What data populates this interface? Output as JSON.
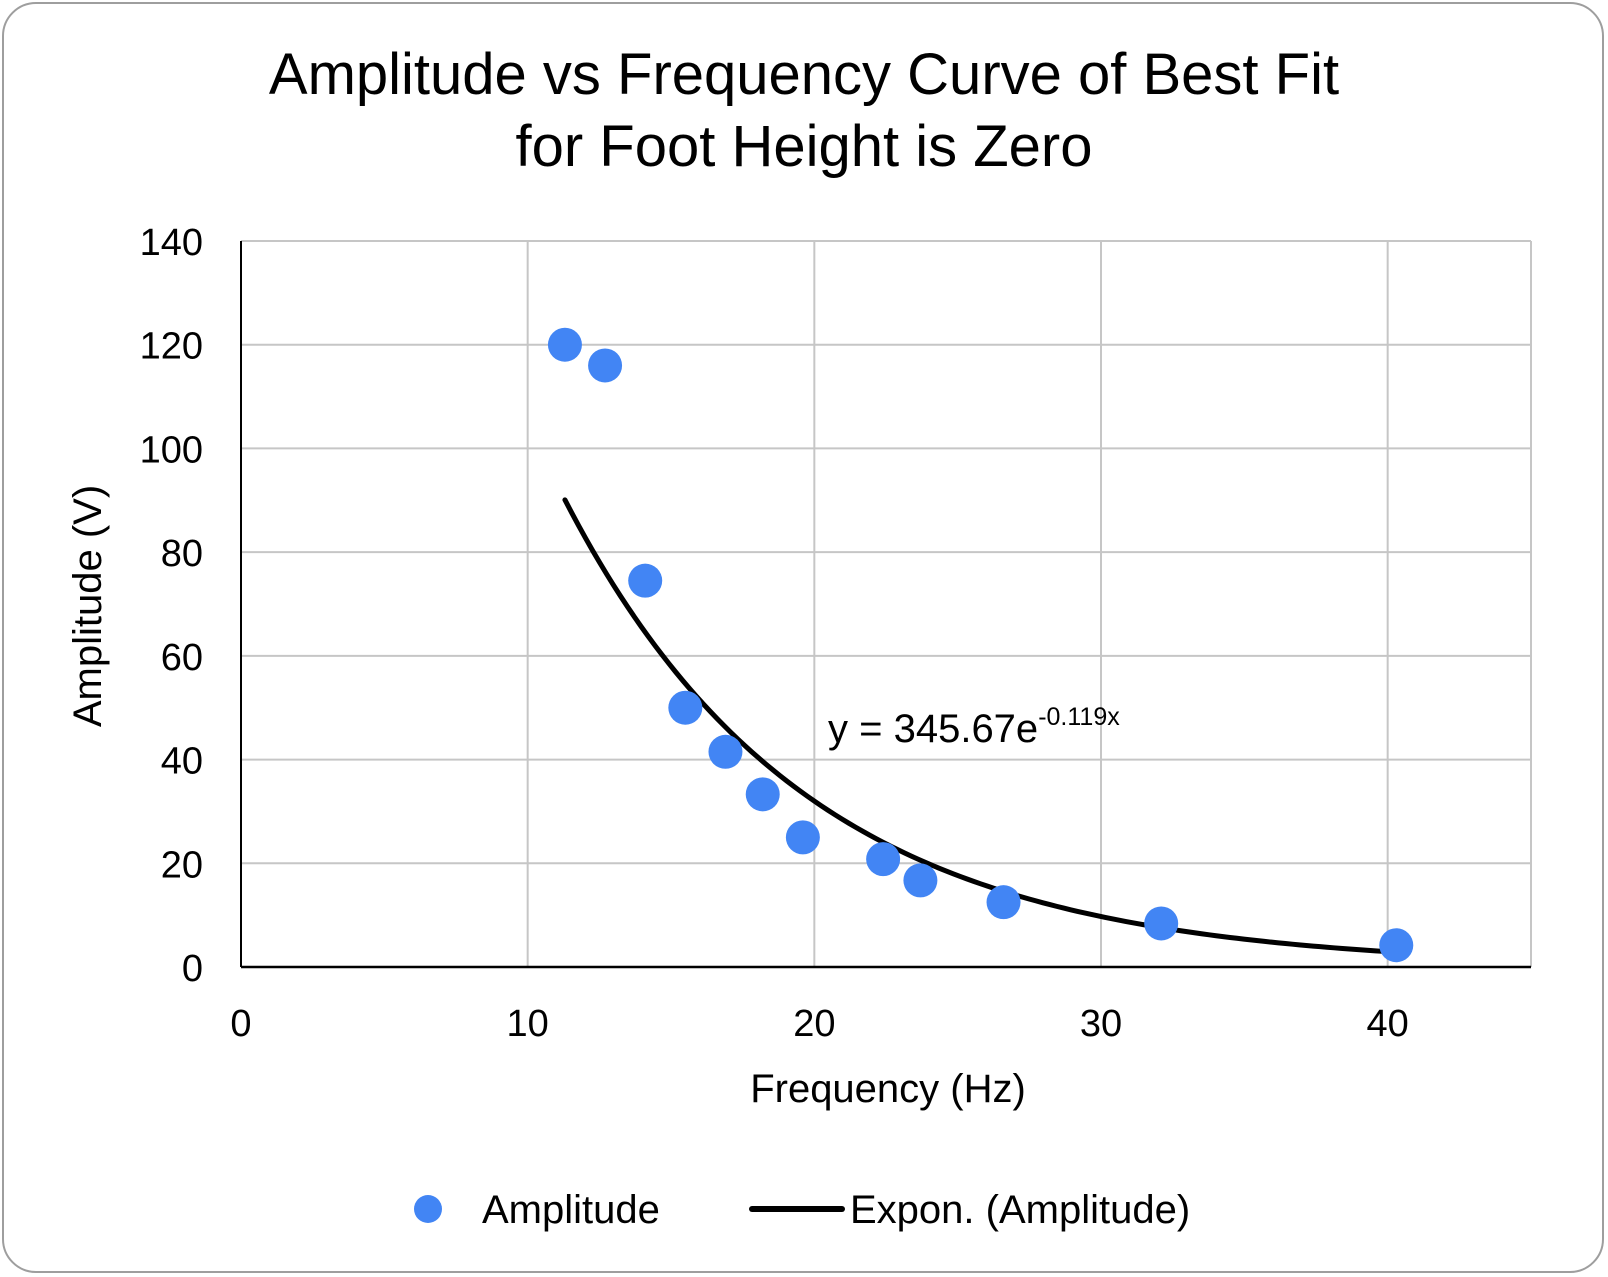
{
  "chart_data": {
    "type": "scatter",
    "title_lines": [
      "Amplitude vs Frequency Curve of Best Fit",
      "for Foot Height is Zero"
    ],
    "xlabel": "Frequency (Hz)",
    "ylabel": "Amplitude (V)",
    "xlim": [
      0,
      45
    ],
    "ylim": [
      0,
      140
    ],
    "xticks": [
      0,
      10,
      20,
      30,
      40
    ],
    "xtick_labels": [
      "0",
      "10",
      "20",
      "30",
      "40"
    ],
    "yticks": [
      0,
      20,
      40,
      60,
      80,
      100,
      120,
      140
    ],
    "ytick_labels": [
      "0",
      "20",
      "40",
      "60",
      "80",
      "100",
      "120",
      "140"
    ],
    "grid": true,
    "legend_position": "bottom",
    "series": [
      {
        "name": "Amplitude",
        "kind": "scatter",
        "color": "#4285f4",
        "x": [
          11.3,
          12.7,
          14.1,
          15.5,
          16.9,
          18.2,
          19.6,
          22.4,
          23.7,
          26.6,
          32.1,
          40.3
        ],
        "y": [
          120,
          116,
          74.5,
          50,
          41.5,
          33.3,
          25,
          20.8,
          16.7,
          12.5,
          8.4,
          4.2
        ]
      },
      {
        "name": "Expon. (Amplitude)",
        "kind": "trendline",
        "model": "exponential",
        "a": 345.67,
        "b": -0.119,
        "x_range": [
          11.3,
          40.3
        ],
        "color": "#000000"
      }
    ],
    "equation": {
      "base": "y = 345.67e",
      "exponent": "-0.119x"
    }
  }
}
